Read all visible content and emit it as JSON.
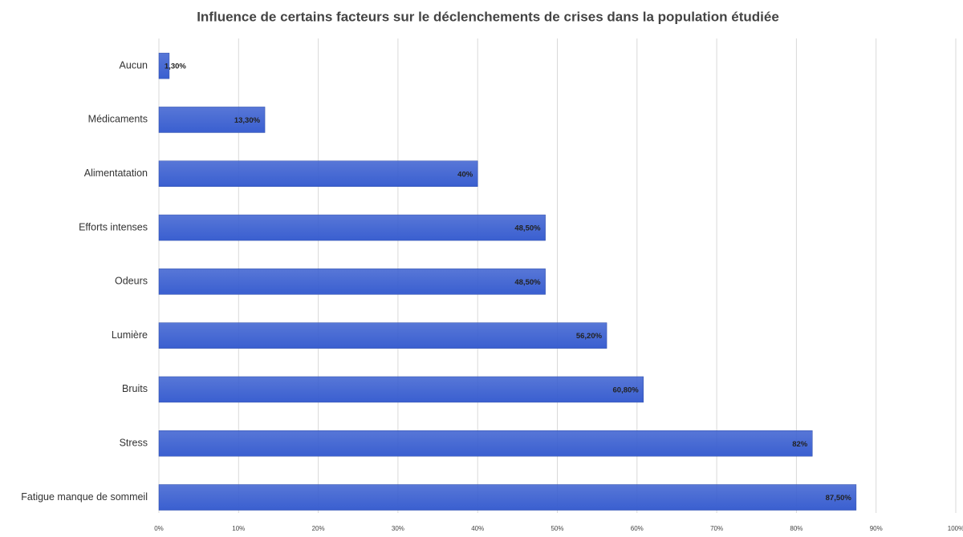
{
  "chart_data": {
    "type": "bar",
    "orientation": "horizontal",
    "title": "Influence de certains facteurs sur le déclenchements de crises dans la population étudiée",
    "categories": [
      "Aucun",
      "Médicaments",
      "Alimentatation",
      "Efforts intenses",
      "Odeurs",
      "Lumière",
      "Bruits",
      "Stress",
      "Fatigue manque de sommeil"
    ],
    "values": [
      1.3,
      13.3,
      40,
      48.5,
      48.5,
      56.2,
      60.8,
      82,
      87.5
    ],
    "value_labels": [
      "1,30%",
      "13,30%",
      "40%",
      "48,50%",
      "48,50%",
      "56,20%",
      "60,80%",
      "82%",
      "87,50%"
    ],
    "color": "#3a5fd0",
    "xlim": [
      0,
      100
    ],
    "xticks": [
      {
        "value": 0,
        "label": "0%"
      },
      {
        "value": 10,
        "label": "10%"
      },
      {
        "value": 20,
        "label": "20%"
      },
      {
        "value": 30,
        "label": "30%"
      },
      {
        "value": 40,
        "label": "40%"
      },
      {
        "value": 50,
        "label": "50%"
      },
      {
        "value": 60,
        "label": "60%"
      },
      {
        "value": 70,
        "label": "70%"
      },
      {
        "value": 80,
        "label": "80%"
      },
      {
        "value": 90,
        "label": "90%"
      },
      {
        "value": 100,
        "label": "100%"
      }
    ],
    "grid": true
  }
}
